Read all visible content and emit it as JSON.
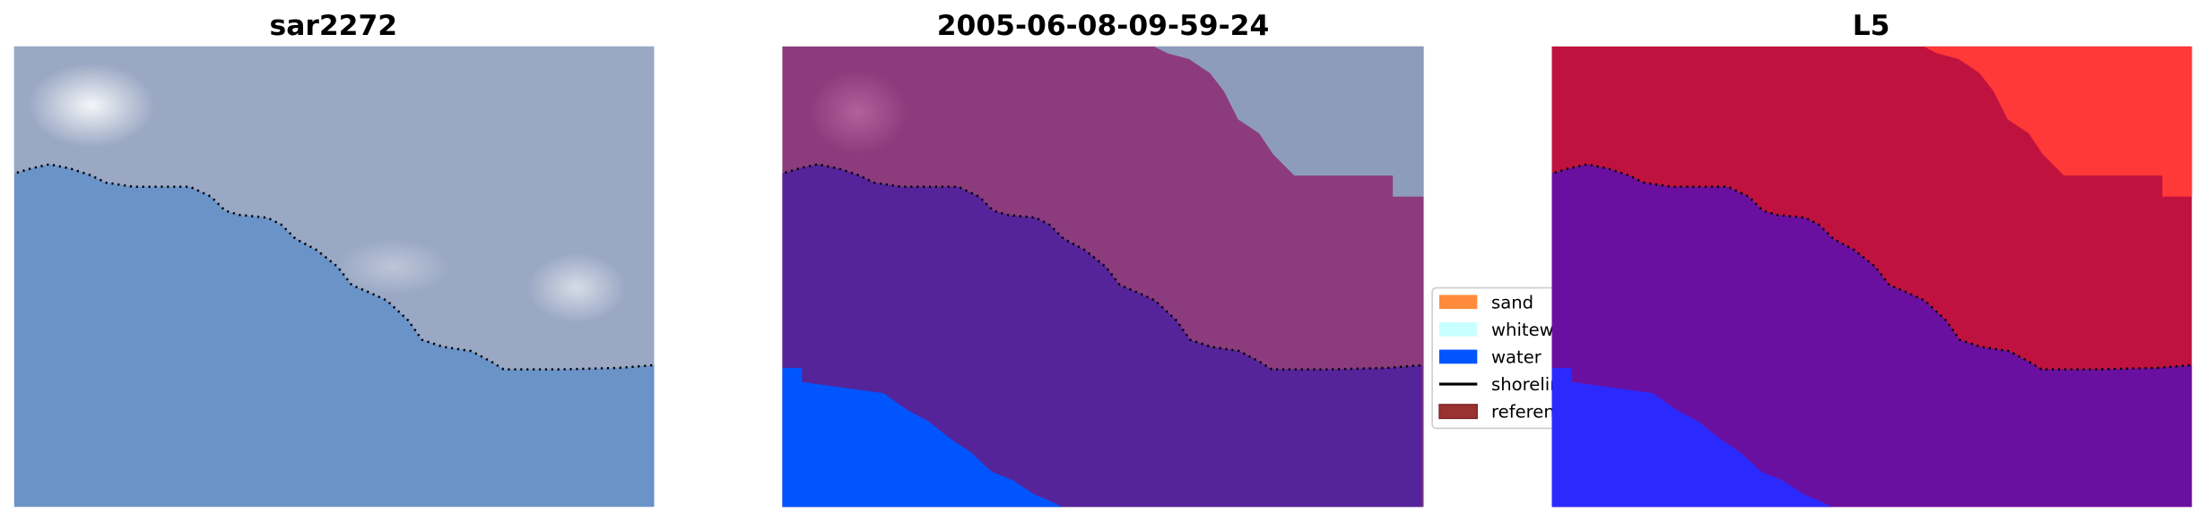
{
  "chart_data": {
    "type": "image-panels",
    "panels": [
      {
        "title": "sar2272",
        "content": "RGB image with reference shoreline (dotted)"
      },
      {
        "title": "2005-06-08-09-59-24",
        "content": "classification overlay with reference shoreline (dotted)"
      },
      {
        "title": "L5",
        "content": "class probability image with reference shoreline (dotted)"
      }
    ],
    "legend": {
      "placement": "center-right of middle panel",
      "entries": [
        {
          "label": "sand",
          "color": "#ff8c3c",
          "kind": "patch"
        },
        {
          "label": "whitewater",
          "color": "#c8ffff",
          "kind": "patch"
        },
        {
          "label": "water",
          "color": "#0055ff",
          "kind": "patch"
        },
        {
          "label": "shoreline",
          "color": "#000000",
          "kind": "line"
        },
        {
          "label": "reference",
          "color": "#9b3232",
          "kind": "patch"
        }
      ]
    },
    "axes": "off"
  },
  "colors": {
    "p1_sea": "#6a93c8",
    "p1_land": "#9aa8c4",
    "p2_top": "#8c3c7c",
    "p2_grey": "#8e9cbc",
    "p2_purple": "#55249a",
    "p2_water": "#0055ff",
    "p3_red": "#c0123e",
    "p3_bright": "#ff3838",
    "p3_purple": "#6a10a0",
    "p3_blue": "#2a2aff"
  }
}
